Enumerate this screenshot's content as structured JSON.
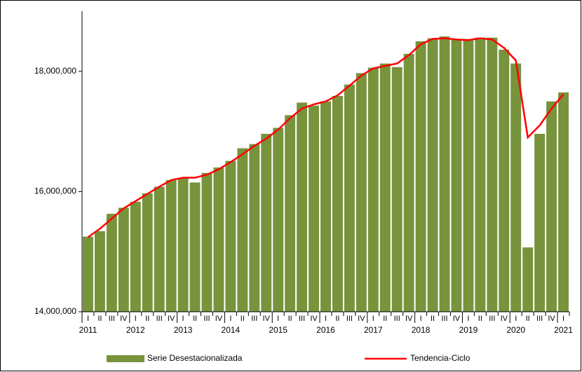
{
  "chart_data": {
    "type": "bar_line",
    "categories": [
      "I",
      "II",
      "III",
      "IV",
      "I",
      "II",
      "III",
      "IV",
      "I",
      "II",
      "III",
      "IV",
      "I",
      "II",
      "III",
      "IV",
      "I",
      "II",
      "III",
      "IV",
      "I",
      "II",
      "III",
      "IV",
      "I",
      "II",
      "III",
      "IV",
      "I",
      "II",
      "III",
      "IV",
      "I",
      "II",
      "III",
      "IV",
      "I",
      "II",
      "III",
      "IV",
      "I"
    ],
    "years": [
      "2011",
      "2012",
      "2013",
      "2014",
      "2015",
      "2016",
      "2017",
      "2018",
      "2019",
      "2020",
      "2021"
    ],
    "series": [
      {
        "name": "Serie Desestacionalizada",
        "kind": "bar",
        "color": "#77933c",
        "values": [
          15250000,
          15340000,
          15630000,
          15730000,
          15830000,
          15970000,
          16080000,
          16190000,
          16220000,
          16150000,
          16310000,
          16400000,
          16510000,
          16720000,
          16790000,
          16960000,
          17060000,
          17270000,
          17480000,
          17430000,
          17500000,
          17590000,
          17780000,
          17970000,
          18060000,
          18130000,
          18070000,
          18290000,
          18500000,
          18550000,
          18580000,
          18530000,
          18520000,
          18560000,
          18560000,
          18360000,
          18130000,
          15070000,
          16960000,
          17500000,
          17650000
        ]
      },
      {
        "name": "Tendencia-Ciclo",
        "kind": "line",
        "color": "#ff0000",
        "values": [
          15240000,
          15380000,
          15550000,
          15720000,
          15840000,
          15960000,
          16080000,
          16190000,
          16230000,
          16230000,
          16280000,
          16370000,
          16490000,
          16620000,
          16760000,
          16880000,
          17030000,
          17220000,
          17380000,
          17450000,
          17500000,
          17600000,
          17760000,
          17930000,
          18050000,
          18090000,
          18130000,
          18270000,
          18450000,
          18540000,
          18550000,
          18530000,
          18520000,
          18550000,
          18530000,
          18390000,
          18180000,
          16900000,
          17100000,
          17380000,
          17620000
        ]
      }
    ],
    "ylim": [
      14000000,
      19000000
    ],
    "yticks": [
      {
        "value": 14000000,
        "label": "14,000,000"
      },
      {
        "value": 16000000,
        "label": "16,000,000"
      },
      {
        "value": 18000000,
        "label": "18,000,000"
      }
    ],
    "legend": "bottom"
  }
}
